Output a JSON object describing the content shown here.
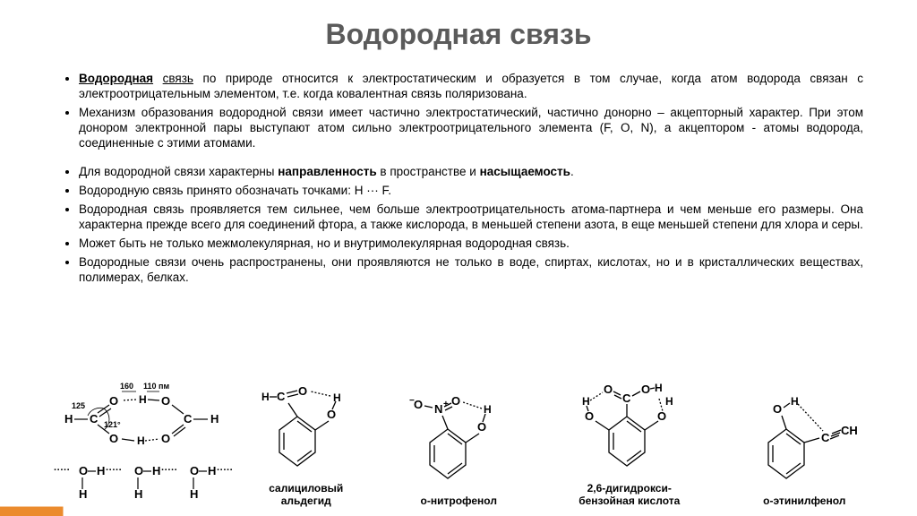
{
  "title": "Водородная связь",
  "bullets": [
    "<span class='underline bold'>Водородная</span> <span class='underline'>связь</span> по природе относится к электростатическим и образуется в том случае, когда атом водорода связан с электроотрицательным элементом, т.е. когда ковалентная связь поляризована.",
    "Механизм образования водородной связи имеет частично электростатический, частично донорно – акцепторный характер. При этом донором электронной пары выступают атом сильно электроотрицательного элемента (F, O, N), а акцептором - атомы водорода, соединенные с этими атомами."
  ],
  "bullets2": [
    "Для водородной связи характерны <span class='bold'>направленность</span> в пространстве и <span class='bold'>насыщаемость</span>.",
    "Водородную связь принято обозначать точками: H ··· F.",
    "Водородная связь проявляется тем сильнее, чем больше электроотрицательность атома-партнера и чем меньше его размеры. Она характерна прежде всего для соединений фтора, а также кислорода, в меньшей степени азота, в еще меньшей степени для хлора и серы.",
    "Может быть не только межмолекулярная, но и внутримолекулярная водородная связь.",
    "Водородные связи очень распространены, они проявляются не только в воде, спиртах, кислотах, но и в кристаллических веществах, полимерах, белках."
  ],
  "captions": {
    "salicyl": "салициловый\nальдегид",
    "nitro": "о-нитрофенол",
    "dihydroxy": "2,6-дигидрокси-\nбензойная кислота",
    "ethynyl": "о-этинилфенол"
  },
  "svg": {
    "dimer_160": "160",
    "dimer_110": "110 пм",
    "dimer_125": "125",
    "dimer_121": "121°"
  },
  "colors": {
    "title": "#5b5b5b",
    "text": "#000000",
    "accent": "#eb8b2d",
    "background": "#ffffff"
  }
}
